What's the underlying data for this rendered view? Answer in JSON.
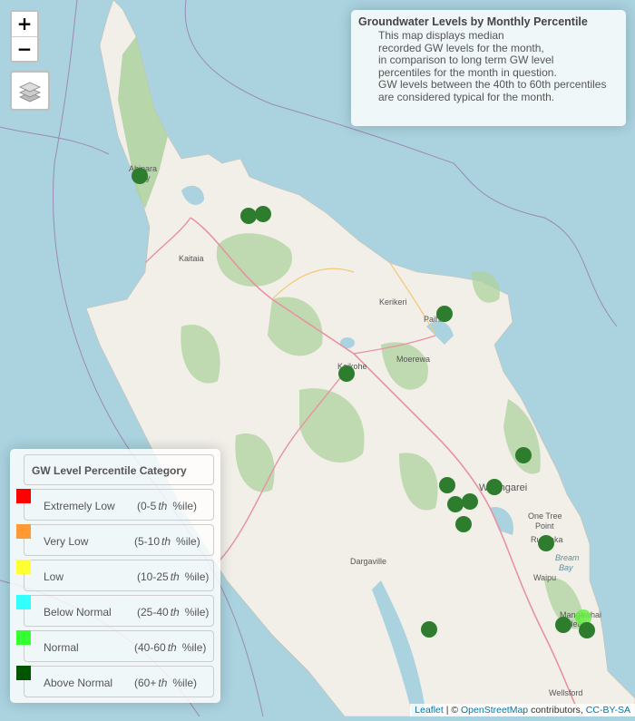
{
  "map": {
    "zoom_in_label": "+",
    "zoom_out_label": "−",
    "colors": {
      "sea": "#aad3df",
      "land": "#f2efe9",
      "forest": "#add19e",
      "road": "#e892a2",
      "marker": "#2e7d2e",
      "marker_light": "#66ee44"
    },
    "places": [
      {
        "name": "Kaitaia"
      },
      {
        "name": "Kerikeri"
      },
      {
        "name": "Paihia"
      },
      {
        "name": "Moerewa"
      },
      {
        "name": "Kaikohe"
      },
      {
        "name": "Whangarei"
      },
      {
        "name": "One Tree"
      },
      {
        "name": "Point"
      },
      {
        "name": "Ruakaka"
      },
      {
        "name": "Bream"
      },
      {
        "name": "Bay"
      },
      {
        "name": "Waipu"
      },
      {
        "name": "Dargaville"
      },
      {
        "name": "Mangawhai"
      },
      {
        "name": "Heads"
      },
      {
        "name": "Wellsford"
      },
      {
        "name": "Ahipara"
      },
      {
        "name": "Bay"
      }
    ],
    "monitoring_sites": [
      {
        "category": "Above Normal"
      },
      {
        "category": "Above Normal"
      },
      {
        "category": "Above Normal"
      },
      {
        "category": "Above Normal"
      },
      {
        "category": "Above Normal"
      },
      {
        "category": "Above Normal"
      },
      {
        "category": "Above Normal"
      },
      {
        "category": "Above Normal"
      },
      {
        "category": "Above Normal"
      },
      {
        "category": "Above Normal"
      },
      {
        "category": "Above Normal"
      },
      {
        "category": "Above Normal"
      },
      {
        "category": "Above Normal"
      },
      {
        "category": "Normal"
      },
      {
        "category": "Above Normal"
      },
      {
        "category": "Above Normal"
      }
    ]
  },
  "info": {
    "title": "Groundwater Levels by Monthly Percentile",
    "lines": [
      "This map displays median",
      "recorded GW levels for the month,",
      "in comparison to long term GW level",
      "percentiles for the month in question.",
      "GW levels between the 40th to 60th percentiles",
      "are considered typical for the month."
    ]
  },
  "legend": {
    "title": "GW Level Percentile Category",
    "th": "th",
    "items": [
      {
        "label": "Extremely Low",
        "range_start": "(0-5",
        "range_end": "%ile)",
        "color": "#ff0000"
      },
      {
        "label": "Very Low",
        "range_start": "(5-10",
        "range_end": "%ile)",
        "color": "#ff9933"
      },
      {
        "label": "Low",
        "range_start": "(10-25",
        "range_end": "%ile)",
        "color": "#ffff33"
      },
      {
        "label": "Below Normal",
        "range_start": "(25-40",
        "range_end": "%ile)",
        "color": "#33ffff"
      },
      {
        "label": "Normal",
        "range_start": "(40-60",
        "range_end": "%ile)",
        "color": "#33ff33"
      },
      {
        "label": "Above Normal",
        "range_start": "(60+",
        "range_end": "%ile)",
        "color": "#005500"
      }
    ]
  },
  "attribution": {
    "leaflet": "Leaflet",
    "separator": " | © ",
    "osm": "OpenStreetMap",
    "contributors": " contributors, ",
    "license": "CC-BY-SA"
  }
}
